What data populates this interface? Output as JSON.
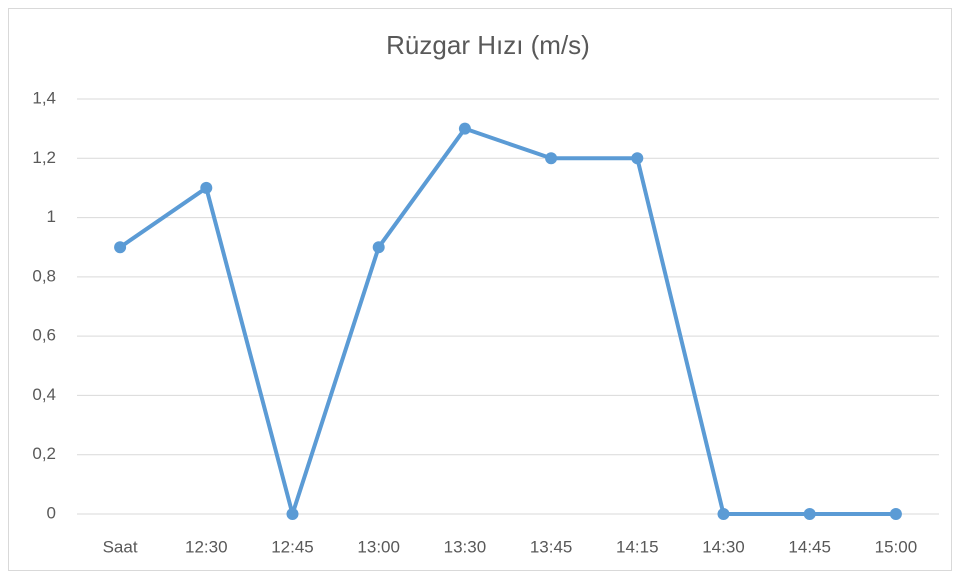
{
  "chart_data": {
    "type": "line",
    "title": "Rüzgar Hızı (m/s)",
    "categories": [
      "Saat",
      "12:30",
      "12:45",
      "13:00",
      "13:30",
      "13:45",
      "14:15",
      "14:30",
      "14:45",
      "15:00"
    ],
    "series": [
      {
        "name": "Rüzgar Hızı (m/s)",
        "color": "#5b9bd5",
        "values": [
          0.9,
          1.1,
          0,
          0.9,
          1.3,
          1.2,
          1.2,
          0,
          0,
          0
        ]
      }
    ],
    "ylim": [
      0,
      1.4
    ],
    "yticks": [
      0,
      {
        "value": 0.2,
        "label": "0,2"
      },
      {
        "value": 0.4,
        "label": "0,4"
      },
      {
        "value": 0.6,
        "label": "0,6"
      },
      {
        "value": 0.8,
        "label": "0,8"
      },
      1,
      {
        "value": 1.2,
        "label": "1,2"
      },
      {
        "value": 1.4,
        "label": "1,4"
      }
    ],
    "grid": true
  }
}
